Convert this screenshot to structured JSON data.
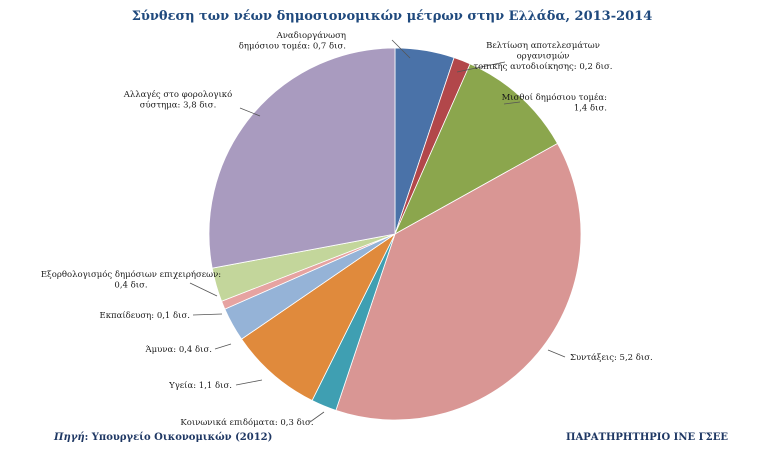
{
  "chart_data": {
    "type": "pie",
    "title": "Σύνθεση των νέων δημοσιονομικών μέτρων στην Ελλάδα, 2013-2014",
    "unit": "δισ.",
    "slices": [
      {
        "label": "Αναδιοργάνωση δημόσιου τομέα",
        "value": 0.7,
        "label_text": "Αναδιοργάνωση δημόσιου τομέα: 0,7 δισ.",
        "color": "#4a72a8"
      },
      {
        "label": "Βελτίωση αποτελεσμάτων οργανισμών τοπικής αυτοδιοίκησης",
        "value": 0.2,
        "label_text": "Βελτίωση αποτελεσμάτων οργανισμών τοπικής αυτοδιοίκησης: 0,2 δισ.",
        "color": "#b2474a"
      },
      {
        "label": "Μισθοί δημόσιου τομέα",
        "value": 1.4,
        "label_text": "Μισθοί δημόσιου τομέα: 1,4 δισ.",
        "color": "#8ba64d"
      },
      {
        "label": "Συντάξεις",
        "value": 5.2,
        "label_text": "Συντάξεις: 5,2 δισ.",
        "color": "#d99694"
      },
      {
        "label": "Κοινωνικά επιδόματα",
        "value": 0.3,
        "label_text": "Κοινωνικά επιδόματα: 0,3 δισ.",
        "color": "#3f9fb2"
      },
      {
        "label": "Υγεία",
        "value": 1.1,
        "label_text": "Υγεία: 1,1 δισ.",
        "color": "#e08a3c"
      },
      {
        "label": "Άμυνα",
        "value": 0.4,
        "label_text": "Άμυνα: 0,4 δισ.",
        "color": "#95b3d7"
      },
      {
        "label": "Εκπαίδευση",
        "value": 0.1,
        "label_text": "Εκπαίδευση: 0,1 δισ.",
        "color": "#e6a3a1"
      },
      {
        "label": "Εξορθολογισμός δημόσιων επιχειρήσεων",
        "value": 0.4,
        "label_text": "Εξορθολογισμός δημόσιων επιχειρήσεων: 0,4 δισ.",
        "color": "#c3d69b"
      },
      {
        "label": "Αλλαγές στο φορολογικό σύστημα",
        "value": 3.8,
        "label_text": "Αλλαγές στο φορολογικό σύστημα: 3,8 δισ.",
        "color": "#a99bbf"
      }
    ]
  },
  "footer": {
    "source_prefix": "Πηγή",
    "source_text": ": Υπουργείο Οικονομικών (2012)",
    "organization": "ΠΑΡΑΤΗΡΗΤΗΡΙΟ ΙΝΕ ΓΣΕΕ"
  }
}
